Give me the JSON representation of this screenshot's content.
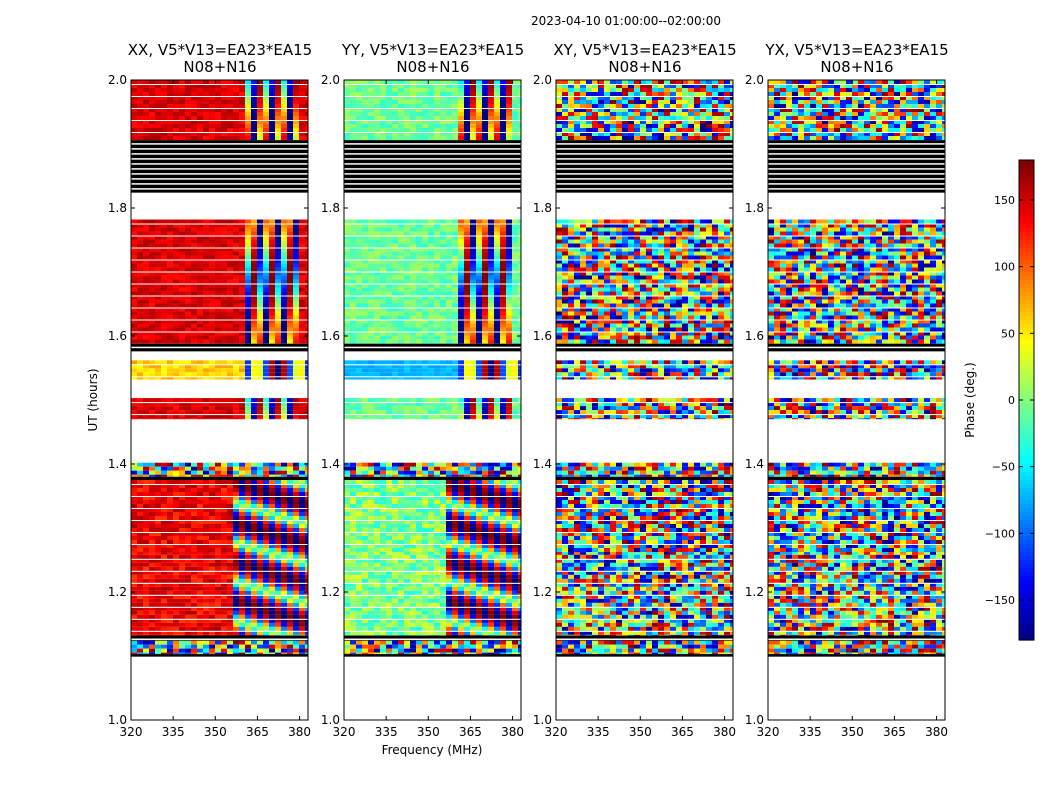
{
  "figure": {
    "suptitle": "2023-04-10  01:00:00--02:00:00",
    "xlabel": "Frequency (MHz)",
    "ylabel": "UT (hours)",
    "colorbar_label": "Phase (deg.)"
  },
  "chart_data": {
    "type": "heatmap",
    "panels": [
      {
        "pol": "XX",
        "title_line1": "XX, V5*V13=EA23*EA15",
        "title_line2": "N08+N16"
      },
      {
        "pol": "YY",
        "title_line1": "YY, V5*V13=EA23*EA15",
        "title_line2": "N08+N16"
      },
      {
        "pol": "XY",
        "title_line1": "XY, V5*V13=EA23*EA15",
        "title_line2": "N08+N16"
      },
      {
        "pol": "YX",
        "title_line1": "YX, V5*V13=EA23*EA15",
        "title_line2": "N08+N16"
      }
    ],
    "xlim": [
      320,
      383
    ],
    "ylim": [
      1.0,
      2.0
    ],
    "xticks": [
      320,
      335,
      350,
      365,
      380
    ],
    "yticks": [
      1.0,
      1.2,
      1.4,
      1.6,
      1.8,
      2.0
    ],
    "ytick_labels": [
      "1.0",
      "1.2",
      "1.4",
      "1.6",
      "1.8",
      "2.0"
    ],
    "colorbar": {
      "colormap": "jet",
      "range": [
        -180,
        180
      ],
      "ticks": [
        150,
        100,
        50,
        0,
        -50,
        -100,
        -150
      ],
      "tick_labels": [
        "150",
        "100",
        "50",
        "0",
        "−50",
        "−100",
        "−150"
      ]
    },
    "flagged_black_bands_hours": [
      [
        1.824,
        1.906
      ],
      [
        1.576,
        1.588
      ],
      [
        1.375,
        1.38
      ],
      [
        1.124,
        1.132
      ],
      [
        1.099,
        1.103
      ]
    ],
    "data_blocks_hours": [
      {
        "y0": 1.906,
        "y1": 2.0,
        "kind": "steady"
      },
      {
        "y0": 1.588,
        "y1": 1.782,
        "kind": "steady"
      },
      {
        "y0": 1.532,
        "y1": 1.562,
        "kind": "alt"
      },
      {
        "y0": 1.47,
        "y1": 1.503,
        "kind": "steady"
      },
      {
        "y0": 1.38,
        "y1": 1.402,
        "kind": "noisy"
      },
      {
        "y0": 1.258,
        "y1": 1.375,
        "kind": "fringe"
      },
      {
        "y0": 1.132,
        "y1": 1.258,
        "kind": "fringe"
      },
      {
        "y0": 1.103,
        "y1": 1.124,
        "kind": "noisy"
      }
    ],
    "empty_bands_hours": [
      [
        1.782,
        1.824
      ],
      [
        1.503,
        1.532
      ],
      [
        1.402,
        1.47
      ],
      [
        1.0,
        1.099
      ]
    ]
  },
  "colors": {
    "flag": "#000000",
    "empty": "#ffffff",
    "axes": "#000000"
  }
}
